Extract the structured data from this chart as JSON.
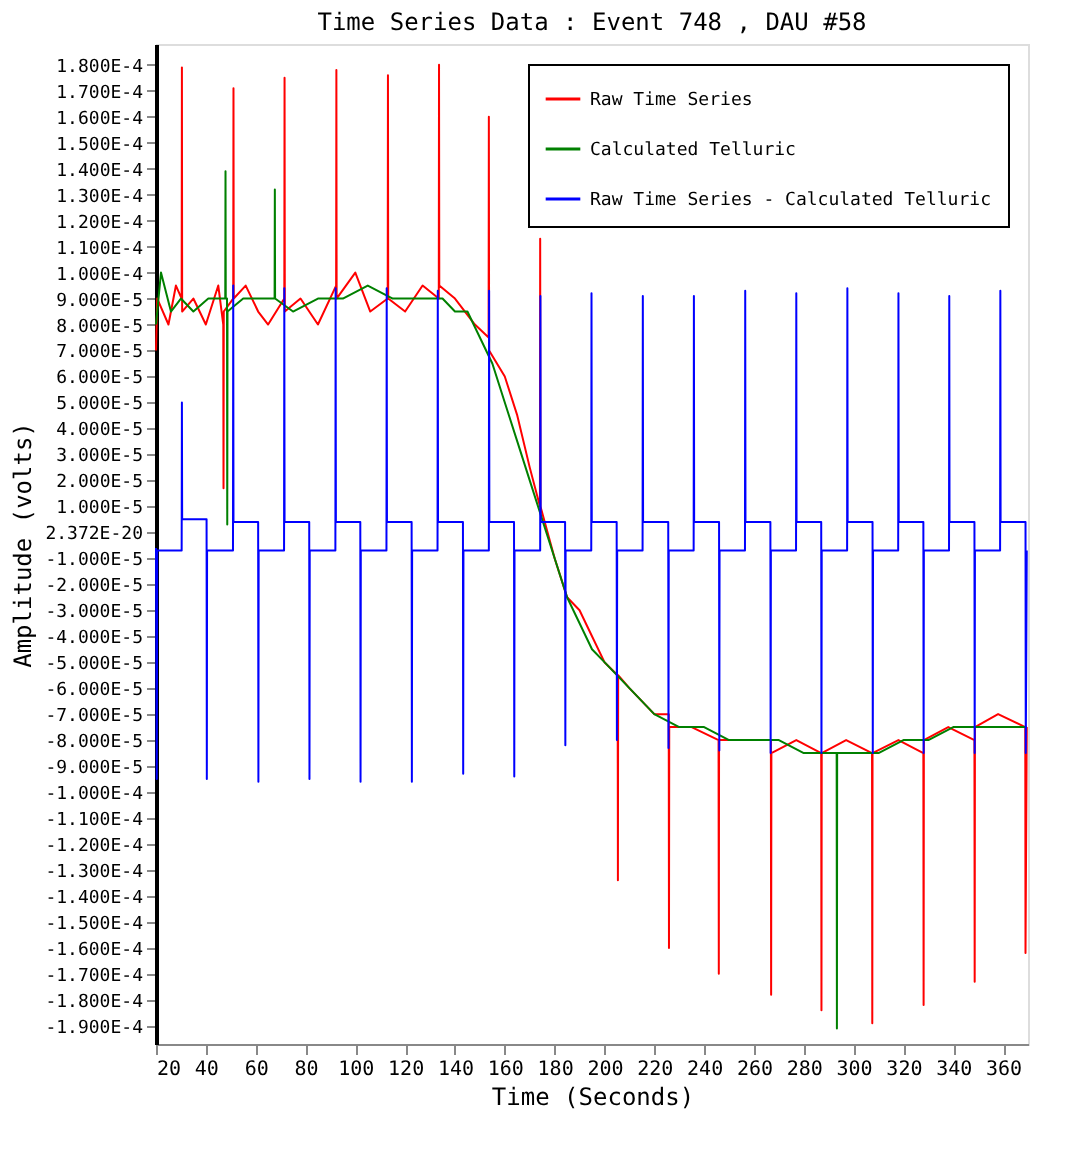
{
  "chart_data": {
    "type": "line",
    "title": "Time Series Data : Event 748 , DAU #58",
    "xlabel": "Time (Seconds)",
    "ylabel": "Amplitude (volts)",
    "xlim": [
      20,
      370
    ],
    "ylim": [
      -0.000197,
      0.000188
    ],
    "xticks": [
      20,
      40,
      60,
      80,
      100,
      120,
      140,
      160,
      180,
      200,
      220,
      240,
      260,
      280,
      300,
      320,
      340,
      360
    ],
    "yticks": [
      {
        "value": 0.00018,
        "label": "1.800E-4"
      },
      {
        "value": 0.00017,
        "label": "1.700E-4"
      },
      {
        "value": 0.00016,
        "label": "1.600E-4"
      },
      {
        "value": 0.00015,
        "label": "1.500E-4"
      },
      {
        "value": 0.00014,
        "label": "1.400E-4"
      },
      {
        "value": 0.00013,
        "label": "1.300E-4"
      },
      {
        "value": 0.00012,
        "label": "1.200E-4"
      },
      {
        "value": 0.00011,
        "label": "1.100E-4"
      },
      {
        "value": 0.0001,
        "label": "1.000E-4"
      },
      {
        "value": 9e-05,
        "label": "9.000E-5"
      },
      {
        "value": 8e-05,
        "label": "8.000E-5"
      },
      {
        "value": 7e-05,
        "label": "7.000E-5"
      },
      {
        "value": 6e-05,
        "label": "6.000E-5"
      },
      {
        "value": 5e-05,
        "label": "5.000E-5"
      },
      {
        "value": 4e-05,
        "label": "4.000E-5"
      },
      {
        "value": 3e-05,
        "label": "3.000E-5"
      },
      {
        "value": 2e-05,
        "label": "2.000E-5"
      },
      {
        "value": 1e-05,
        "label": "1.000E-5"
      },
      {
        "value": 2.372e-20,
        "label": "2.372E-20"
      },
      {
        "value": -1e-05,
        "label": "-1.000E-5"
      },
      {
        "value": -2e-05,
        "label": "-2.000E-5"
      },
      {
        "value": -3e-05,
        "label": "-3.000E-5"
      },
      {
        "value": -4e-05,
        "label": "-4.000E-5"
      },
      {
        "value": -5e-05,
        "label": "-5.000E-5"
      },
      {
        "value": -6e-05,
        "label": "-6.000E-5"
      },
      {
        "value": -7e-05,
        "label": "-7.000E-5"
      },
      {
        "value": -8e-05,
        "label": "-8.000E-5"
      },
      {
        "value": -9e-05,
        "label": "-9.000E-5"
      },
      {
        "value": -0.0001,
        "label": "-1.000E-4"
      },
      {
        "value": -0.00011,
        "label": "-1.100E-4"
      },
      {
        "value": -0.00012,
        "label": "-1.200E-4"
      },
      {
        "value": -0.00013,
        "label": "-1.300E-4"
      },
      {
        "value": -0.00014,
        "label": "-1.400E-4"
      },
      {
        "value": -0.00015,
        "label": "-1.500E-4"
      },
      {
        "value": -0.00016,
        "label": "-1.600E-4"
      },
      {
        "value": -0.00017,
        "label": "-1.700E-4"
      },
      {
        "value": -0.00018,
        "label": "-1.800E-4"
      },
      {
        "value": -0.00019,
        "label": "-1.900E-4"
      }
    ],
    "grid": false,
    "legend": "top right",
    "marker": "none",
    "line_style": "solid",
    "series": [
      {
        "name": "Raw Time Series",
        "color": "#ff0000",
        "x": [
          20,
          20.5,
          25,
          28,
          30.3,
          30.4,
          30.5,
          35,
          40,
          45,
          47,
          47.1,
          47.2,
          51,
          51.1,
          51.2,
          56,
          61,
          65,
          71.5,
          71.6,
          71.7,
          78,
          85,
          92.3,
          92.4,
          92.5,
          100,
          106,
          113,
          113.1,
          113.2,
          120,
          127,
          133.5,
          133.6,
          133.7,
          140,
          148,
          153.5,
          153.6,
          153.7,
          160,
          165,
          170,
          174.1,
          174.2,
          174.3,
          180,
          185,
          190,
          195,
          200,
          205.3,
          205.4,
          205.5,
          210,
          215,
          220,
          225.8,
          225.9,
          226,
          235,
          245.8,
          245.9,
          246,
          255,
          266.8,
          266.9,
          267,
          277,
          287,
          287.1,
          287.2,
          297,
          307.4,
          307.5,
          307.6,
          318,
          328,
          328.1,
          328.2,
          338,
          348.5,
          348.6,
          348.7,
          358,
          368.9,
          369,
          369.5
        ],
        "values": [
          7e-05,
          9e-05,
          8e-05,
          9.5e-05,
          9e-05,
          0.000179,
          8.5e-05,
          9e-05,
          8e-05,
          9.5e-05,
          8e-05,
          1.7e-05,
          8.5e-05,
          9e-05,
          0.000171,
          9e-05,
          9.5e-05,
          8.5e-05,
          8e-05,
          9e-05,
          0.000175,
          8.5e-05,
          9e-05,
          8e-05,
          9.5e-05,
          0.000178,
          9e-05,
          0.0001,
          8.5e-05,
          9e-05,
          0.000176,
          9e-05,
          8.5e-05,
          9.5e-05,
          9e-05,
          0.00018,
          9.5e-05,
          9e-05,
          8e-05,
          7.5e-05,
          0.00016,
          7e-05,
          6e-05,
          4.5e-05,
          2.5e-05,
          1e-05,
          0.000113,
          1e-05,
          -1e-05,
          -2.5e-05,
          -3e-05,
          -4e-05,
          -5e-05,
          -5.5e-05,
          -0.000134,
          -5.5e-05,
          -6e-05,
          -6.5e-05,
          -7e-05,
          -7e-05,
          -0.00016,
          -7.5e-05,
          -7.5e-05,
          -8e-05,
          -0.00017,
          -8e-05,
          -8e-05,
          -8e-05,
          -0.000178,
          -8.5e-05,
          -8e-05,
          -8.5e-05,
          -0.000184,
          -8.5e-05,
          -8e-05,
          -8.5e-05,
          -0.000189,
          -8.5e-05,
          -8e-05,
          -8.5e-05,
          -0.000182,
          -8e-05,
          -7.5e-05,
          -8e-05,
          -0.000173,
          -7.5e-05,
          -7e-05,
          -7.5e-05,
          -0.000162,
          -7.5e-05
        ]
      },
      {
        "name": "Calculated Telluric",
        "color": "#008000",
        "x": [
          20,
          22,
          26,
          30,
          35,
          41,
          47.8,
          47.9,
          48,
          48.5,
          48.6,
          48.7,
          55,
          67.6,
          67.7,
          67.8,
          75,
          85,
          95,
          105,
          115,
          125,
          135,
          140,
          145,
          150,
          155,
          160,
          165,
          170,
          175,
          180,
          185,
          190,
          195,
          200,
          205,
          210,
          215,
          220,
          230,
          240,
          250,
          260,
          270,
          280,
          293.2,
          293.3,
          293.4,
          300,
          310,
          320,
          330,
          340,
          350,
          360,
          369.5
        ],
        "values": [
          8e-05,
          0.0001,
          8.5e-05,
          9e-05,
          8.5e-05,
          9e-05,
          9e-05,
          0.000139,
          9e-05,
          9e-05,
          3e-06,
          8.5e-05,
          9e-05,
          9e-05,
          0.000132,
          9e-05,
          8.5e-05,
          9e-05,
          9e-05,
          9.5e-05,
          9e-05,
          9e-05,
          9e-05,
          8.5e-05,
          8.5e-05,
          7.5e-05,
          6.5e-05,
          5e-05,
          3.5e-05,
          2e-05,
          5e-06,
          -1e-05,
          -2.5e-05,
          -3.5e-05,
          -4.5e-05,
          -5e-05,
          -5.5e-05,
          -6e-05,
          -6.5e-05,
          -7e-05,
          -7.5e-05,
          -7.5e-05,
          -8e-05,
          -8e-05,
          -8e-05,
          -8.5e-05,
          -8.5e-05,
          -0.000191,
          -8.5e-05,
          -8.5e-05,
          -8.5e-05,
          -8e-05,
          -8e-05,
          -7.5e-05,
          -7.5e-05,
          -7.5e-05,
          -7.5e-05
        ]
      },
      {
        "name": "Raw Time Series - Calculated Telluric",
        "color": "#0000ff",
        "x": [
          20,
          20.3,
          20.5,
          30.3,
          30.4,
          30.5,
          40.3,
          40.4,
          40.5,
          50.9,
          51,
          51.1,
          61,
          61.1,
          61.2,
          71.4,
          71.5,
          71.6,
          81.5,
          81.6,
          81.7,
          92,
          92.1,
          92.2,
          102,
          102.1,
          102.2,
          112.5,
          112.6,
          112.7,
          122.6,
          122.7,
          122.8,
          133,
          133.1,
          133.2,
          143.2,
          143.3,
          143.4,
          153.6,
          153.7,
          153.8,
          163.7,
          163.8,
          163.9,
          174.2,
          174.3,
          174.4,
          184.2,
          184.3,
          184.4,
          194.7,
          194.8,
          194.9,
          204.9,
          205,
          205.1,
          215.3,
          215.4,
          215.5,
          225.6,
          225.7,
          225.8,
          235.8,
          235.9,
          236,
          246,
          246.1,
          246.2,
          256.4,
          256.5,
          256.6,
          266.6,
          266.7,
          266.8,
          276.9,
          277,
          277.1,
          287,
          287.1,
          287.2,
          297.4,
          297.5,
          297.6,
          307.6,
          307.7,
          307.8,
          317.9,
          318,
          318.1,
          328,
          328.1,
          328.2,
          338.3,
          338.4,
          338.5,
          348.5,
          348.6,
          348.7,
          358.8,
          358.9,
          359,
          369,
          369.1,
          369.5
        ],
        "values": [
          -6e-06,
          -9.5e-05,
          -7e-06,
          -7e-06,
          5e-05,
          5e-06,
          5e-06,
          -9.5e-05,
          -7e-06,
          -7e-06,
          9.5e-05,
          4e-06,
          4e-06,
          -9.6e-05,
          -7e-06,
          -7e-06,
          9.4e-05,
          4e-06,
          4e-06,
          -9.5e-05,
          -7e-06,
          -7e-06,
          9.4e-05,
          4e-06,
          4e-06,
          -9.6e-05,
          -7e-06,
          -7e-06,
          9.4e-05,
          4e-06,
          4e-06,
          -9.6e-05,
          -7e-06,
          -7e-06,
          9.3e-05,
          4e-06,
          4e-06,
          -9.3e-05,
          -7e-06,
          -7e-06,
          9.3e-05,
          4e-06,
          4e-06,
          -9.4e-05,
          -7e-06,
          -7e-06,
          9.1e-05,
          4e-06,
          4e-06,
          -8.2e-05,
          -7e-06,
          -7e-06,
          9.2e-05,
          4e-06,
          4e-06,
          -8e-05,
          -7e-06,
          -7e-06,
          9.1e-05,
          4e-06,
          4e-06,
          -8.3e-05,
          -7e-06,
          -7e-06,
          9.1e-05,
          4e-06,
          4e-06,
          -8.4e-05,
          -7e-06,
          -7e-06,
          9.3e-05,
          4e-06,
          4e-06,
          -8.5e-05,
          -7e-06,
          -7e-06,
          9.2e-05,
          4e-06,
          4e-06,
          -8.5e-05,
          -7e-06,
          -7e-06,
          9.4e-05,
          4e-06,
          4e-06,
          -8.5e-05,
          -7e-06,
          -7e-06,
          9.2e-05,
          4e-06,
          4e-06,
          -8.5e-05,
          -7e-06,
          -7e-06,
          9.1e-05,
          4e-06,
          4e-06,
          -8.5e-05,
          -7e-06,
          -7e-06,
          9.3e-05,
          4e-06,
          4e-06,
          -8.5e-05,
          -7e-06
        ]
      }
    ]
  }
}
